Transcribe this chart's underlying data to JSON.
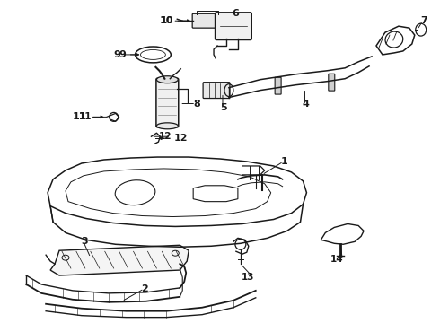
{
  "background_color": "#ffffff",
  "line_color": "#1a1a1a",
  "text_color": "#1a1a1a",
  "figsize": [
    4.9,
    3.6
  ],
  "dpi": 100
}
